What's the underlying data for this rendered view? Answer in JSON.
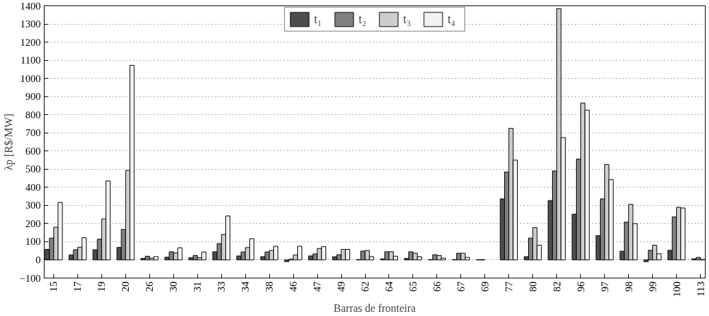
{
  "chart_data": {
    "type": "bar",
    "xlabel": "Barras de fronteira",
    "ylabel": "λp [R$/MW]",
    "categories": [
      "15",
      "17",
      "19",
      "20",
      "26",
      "30",
      "31",
      "33",
      "34",
      "38",
      "46",
      "47",
      "49",
      "62",
      "64",
      "65",
      "66",
      "67",
      "69",
      "77",
      "80",
      "82",
      "96",
      "97",
      "98",
      "99",
      "100",
      "113"
    ],
    "series": [
      {
        "name": "t₁",
        "color": "#4d4d4d",
        "values": [
          58,
          27,
          56,
          69,
          8,
          15,
          12,
          45,
          22,
          18,
          -10,
          22,
          17,
          2,
          5,
          8,
          2,
          2,
          1,
          336,
          18,
          327,
          252,
          134,
          48,
          -10,
          53,
          6
        ]
      },
      {
        "name": "t₂",
        "color": "#808080",
        "values": [
          120,
          56,
          114,
          168,
          20,
          45,
          24,
          90,
          44,
          44,
          4,
          33,
          28,
          49,
          45,
          45,
          28,
          37,
          1,
          484,
          120,
          490,
          556,
          336,
          208,
          53,
          237,
          14
        ]
      },
      {
        "name": "t₃",
        "color": "#cccccc",
        "values": [
          180,
          70,
          226,
          493,
          10,
          38,
          12,
          140,
          68,
          52,
          27,
          63,
          58,
          52,
          45,
          37,
          25,
          37,
          null,
          725,
          178,
          1384,
          864,
          526,
          306,
          81,
          290,
          3
        ]
      },
      {
        "name": "t₄",
        "color": "#f2f2f2",
        "values": [
          317,
          122,
          435,
          1072,
          18,
          67,
          43,
          242,
          117,
          75,
          75,
          73,
          58,
          18,
          20,
          17,
          10,
          14,
          null,
          550,
          81,
          674,
          825,
          442,
          200,
          34,
          286,
          null
        ]
      }
    ],
    "ylim": [
      -100,
      1400
    ],
    "yticks": [
      -100,
      0,
      100,
      200,
      300,
      400,
      500,
      600,
      700,
      800,
      900,
      1000,
      1100,
      1200,
      1300,
      1400
    ],
    "grid": "y",
    "legend": "top"
  }
}
